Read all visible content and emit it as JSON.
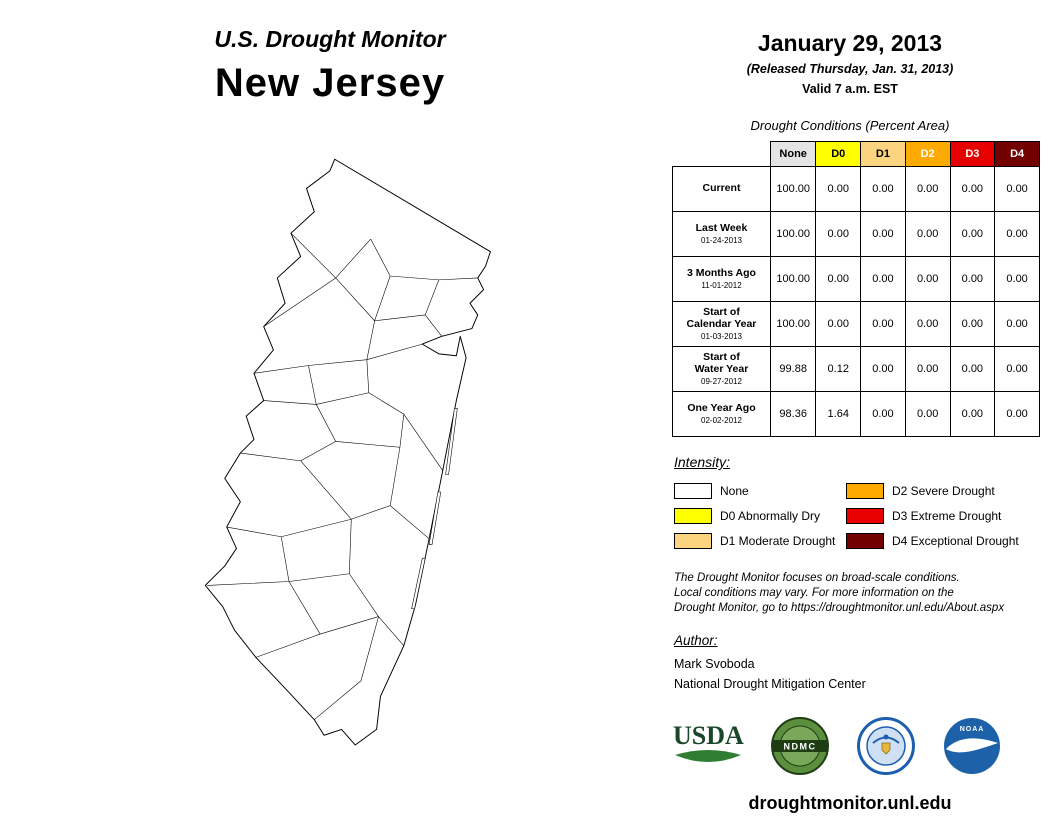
{
  "header": {
    "product_title": "U.S. Drought Monitor",
    "region": "New Jersey"
  },
  "date_block": {
    "date": "January 29, 2013",
    "released": "(Released Thursday, Jan. 31, 2013)",
    "valid": "Valid 7 a.m. EST"
  },
  "table": {
    "title": "Drought Conditions (Percent Area)",
    "columns": [
      "None",
      "D0",
      "D1",
      "D2",
      "D3",
      "D4"
    ],
    "header_colors": [
      "#E4E4E4",
      "#FFFF00",
      "#FCD37F",
      "#FFAA00",
      "#E60000",
      "#730000"
    ],
    "header_text_colors": [
      "#000000",
      "#000000",
      "#000000",
      "#FFFFFF",
      "#FFFFFF",
      "#FFFFFF"
    ],
    "rows": [
      {
        "label": "Current",
        "date": "",
        "values": [
          "100.00",
          "0.00",
          "0.00",
          "0.00",
          "0.00",
          "0.00"
        ]
      },
      {
        "label": "Last Week",
        "date": "01-24-2013",
        "values": [
          "100.00",
          "0.00",
          "0.00",
          "0.00",
          "0.00",
          "0.00"
        ]
      },
      {
        "label": "3 Months Ago",
        "date": "11-01-2012",
        "values": [
          "100.00",
          "0.00",
          "0.00",
          "0.00",
          "0.00",
          "0.00"
        ]
      },
      {
        "label": "Start of\nCalendar Year",
        "date": "01-03-2013",
        "values": [
          "100.00",
          "0.00",
          "0.00",
          "0.00",
          "0.00",
          "0.00"
        ]
      },
      {
        "label": "Start of\nWater Year",
        "date": "09-27-2012",
        "values": [
          "99.88",
          "0.12",
          "0.00",
          "0.00",
          "0.00",
          "0.00"
        ]
      },
      {
        "label": "One Year Ago",
        "date": "02-02-2012",
        "values": [
          "98.36",
          "1.64",
          "0.00",
          "0.00",
          "0.00",
          "0.00"
        ]
      }
    ]
  },
  "legend": {
    "title": "Intensity:",
    "items": [
      {
        "label": "None",
        "color": "#FFFFFF"
      },
      {
        "label": "D0 Abnormally Dry",
        "color": "#FFFF00"
      },
      {
        "label": "D1 Moderate Drought",
        "color": "#FCD37F"
      },
      {
        "label": "D2 Severe Drought",
        "color": "#FFAA00"
      },
      {
        "label": "D3 Extreme Drought",
        "color": "#E60000"
      },
      {
        "label": "D4 Exceptional Drought",
        "color": "#730000"
      }
    ]
  },
  "disclaimer": {
    "line1": "The Drought Monitor focuses on broad-scale conditions.",
    "line2": "Local conditions may vary. For more information on the",
    "line3": "Drought Monitor, go to https://droughtmonitor.unl.edu/About.aspx"
  },
  "author": {
    "heading": "Author:",
    "name": "Mark Svoboda",
    "org": "National Drought Mitigation Center"
  },
  "logos": {
    "usda": "USDA",
    "ndmc": "NDMC",
    "commerce": "Department of Commerce",
    "noaa": "NOAA"
  },
  "footer": {
    "url": "droughtmonitor.unl.edu"
  }
}
